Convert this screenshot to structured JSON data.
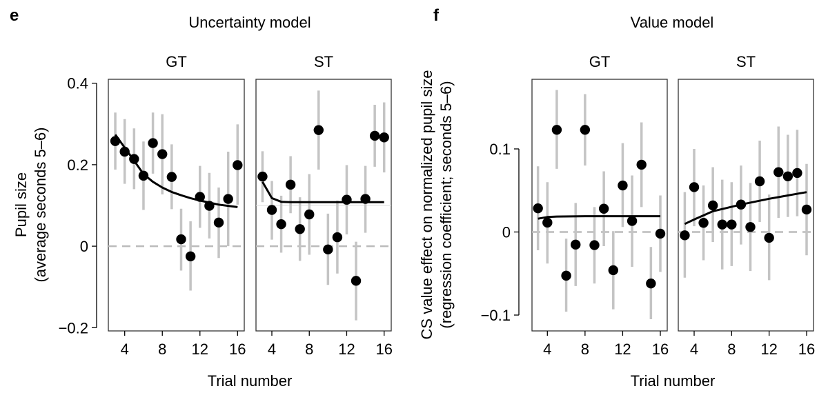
{
  "chart_data": [
    {
      "type": "scatter",
      "panel_letter": "e",
      "title": "Uncertainty model",
      "ylabel": [
        "Pupil size",
        "(average seconds 5–6)"
      ],
      "xlabel": "Trial number",
      "ylim": [
        -0.2,
        0.4
      ],
      "yticks": [
        {
          "v": 0.4,
          "label": "0.4"
        },
        {
          "v": 0.2,
          "label": "0.2"
        },
        {
          "v": 0,
          "label": "0"
        },
        {
          "v": -0.2,
          "label": "−0.2"
        }
      ],
      "xticks": [
        {
          "v": 4,
          "label": "4"
        },
        {
          "v": 8,
          "label": "8"
        },
        {
          "v": 12,
          "label": "12"
        },
        {
          "v": 16,
          "label": "16"
        }
      ],
      "zero_line": 0,
      "panels": [
        {
          "name": "GT",
          "x": [
            3,
            4,
            5,
            6,
            7,
            8,
            9,
            10,
            11,
            12,
            13,
            14,
            15,
            16
          ],
          "y": [
            0.258,
            0.232,
            0.214,
            0.173,
            0.253,
            0.226,
            0.17,
            0.017,
            -0.025,
            0.121,
            0.099,
            0.058,
            0.116,
            0.199
          ],
          "ci_low": [
            0.188,
            0.153,
            0.14,
            0.089,
            0.178,
            0.127,
            0.091,
            -0.06,
            -0.109,
            0.045,
            0.019,
            -0.029,
            0.0,
            0.102
          ],
          "ci_high": [
            0.328,
            0.312,
            0.289,
            0.257,
            0.328,
            0.324,
            0.25,
            0.092,
            0.061,
            0.197,
            0.18,
            0.144,
            0.232,
            0.299
          ],
          "fit": {
            "x": [
              3,
              4,
              5,
              6,
              7,
              8,
              9,
              10,
              11,
              12,
              13,
              14,
              15,
              16
            ],
            "y": [
              0.274,
              0.242,
              0.21,
              0.177,
              0.158,
              0.144,
              0.133,
              0.125,
              0.118,
              0.112,
              0.107,
              0.102,
              0.099,
              0.096
            ]
          }
        },
        {
          "name": "ST",
          "x": [
            3,
            4,
            5,
            6,
            7,
            8,
            9,
            10,
            11,
            12,
            13,
            14,
            15,
            16
          ],
          "y": [
            0.171,
            0.089,
            0.054,
            0.151,
            0.042,
            0.078,
            0.285,
            -0.008,
            0.022,
            0.114,
            -0.085,
            0.116,
            0.271,
            0.267
          ],
          "ci_low": [
            0.108,
            0.016,
            -0.016,
            0.081,
            -0.036,
            -0.021,
            0.188,
            -0.095,
            -0.067,
            0.029,
            -0.182,
            0.033,
            0.195,
            0.181
          ],
          "ci_high": [
            0.233,
            0.16,
            0.124,
            0.221,
            0.12,
            0.177,
            0.382,
            0.08,
            0.112,
            0.199,
            0.011,
            0.197,
            0.347,
            0.353
          ],
          "fit": {
            "x": [
              3,
              4,
              5,
              6,
              8,
              10,
              12,
              14,
              16
            ],
            "y": [
              0.158,
              0.118,
              0.109,
              0.108,
              0.108,
              0.108,
              0.108,
              0.108,
              0.108
            ]
          },
          "reference_line": 0.1
        }
      ]
    },
    {
      "type": "scatter",
      "panel_letter": "f",
      "title": "Value model",
      "ylabel": [
        "CS value effect on normalized pupil size",
        "(regression coefficient; seconds 5–6)"
      ],
      "xlabel": "Trial number",
      "ylim": [
        -0.1,
        0.1
      ],
      "yticks": [
        {
          "v": 0.1,
          "label": "0.1"
        },
        {
          "v": 0,
          "label": "0"
        },
        {
          "v": -0.1,
          "label": "−0.1"
        }
      ],
      "xticks": [
        {
          "v": 4,
          "label": "4"
        },
        {
          "v": 8,
          "label": "8"
        },
        {
          "v": 12,
          "label": "12"
        },
        {
          "v": 16,
          "label": "16"
        }
      ],
      "zero_line": 0,
      "panels": [
        {
          "name": "GT",
          "x": [
            3,
            4,
            5,
            6,
            7,
            8,
            9,
            10,
            11,
            12,
            13,
            14,
            15,
            16
          ],
          "y": [
            0.0285,
            0.0113,
            0.123,
            -0.0526,
            -0.0152,
            0.123,
            -0.0158,
            0.028,
            -0.046,
            0.056,
            0.0133,
            0.081,
            -0.062,
            -0.002
          ],
          "ci_low": [
            -0.022,
            -0.038,
            0.076,
            -0.096,
            -0.065,
            0.08,
            -0.062,
            -0.017,
            -0.093,
            0.006,
            -0.042,
            0.03,
            -0.105,
            -0.048
          ],
          "ci_high": [
            0.079,
            0.06,
            0.171,
            -0.008,
            0.035,
            0.166,
            0.03,
            0.073,
            0.001,
            0.107,
            0.068,
            0.132,
            -0.018,
            0.044
          ],
          "fit": {
            "x": [
              3,
              4,
              5,
              8,
              12,
              16
            ],
            "y": [
              0.016,
              0.018,
              0.0186,
              0.019,
              0.019,
              0.019
            ]
          }
        },
        {
          "name": "ST",
          "x": [
            3,
            4,
            5,
            6,
            7,
            8,
            9,
            10,
            11,
            12,
            13,
            14,
            15,
            16
          ],
          "y": [
            -0.004,
            0.054,
            0.011,
            0.032,
            0.009,
            0.009,
            0.033,
            0.006,
            0.061,
            -0.007,
            0.072,
            0.067,
            0.071,
            0.027
          ],
          "ci_low": [
            -0.055,
            0.007,
            -0.034,
            -0.012,
            -0.045,
            -0.041,
            -0.015,
            -0.047,
            0.012,
            -0.058,
            0.017,
            0.018,
            0.019,
            -0.028
          ],
          "ci_high": [
            0.048,
            0.1,
            0.056,
            0.078,
            0.063,
            0.06,
            0.08,
            0.059,
            0.11,
            0.045,
            0.127,
            0.117,
            0.123,
            0.082
          ],
          "fit": {
            "x": [
              3,
              4,
              6,
              9,
              12,
              14,
              16
            ],
            "y": [
              0.0097,
              0.015,
              0.025,
              0.033,
              0.04,
              0.044,
              0.048
            ]
          }
        }
      ]
    }
  ]
}
